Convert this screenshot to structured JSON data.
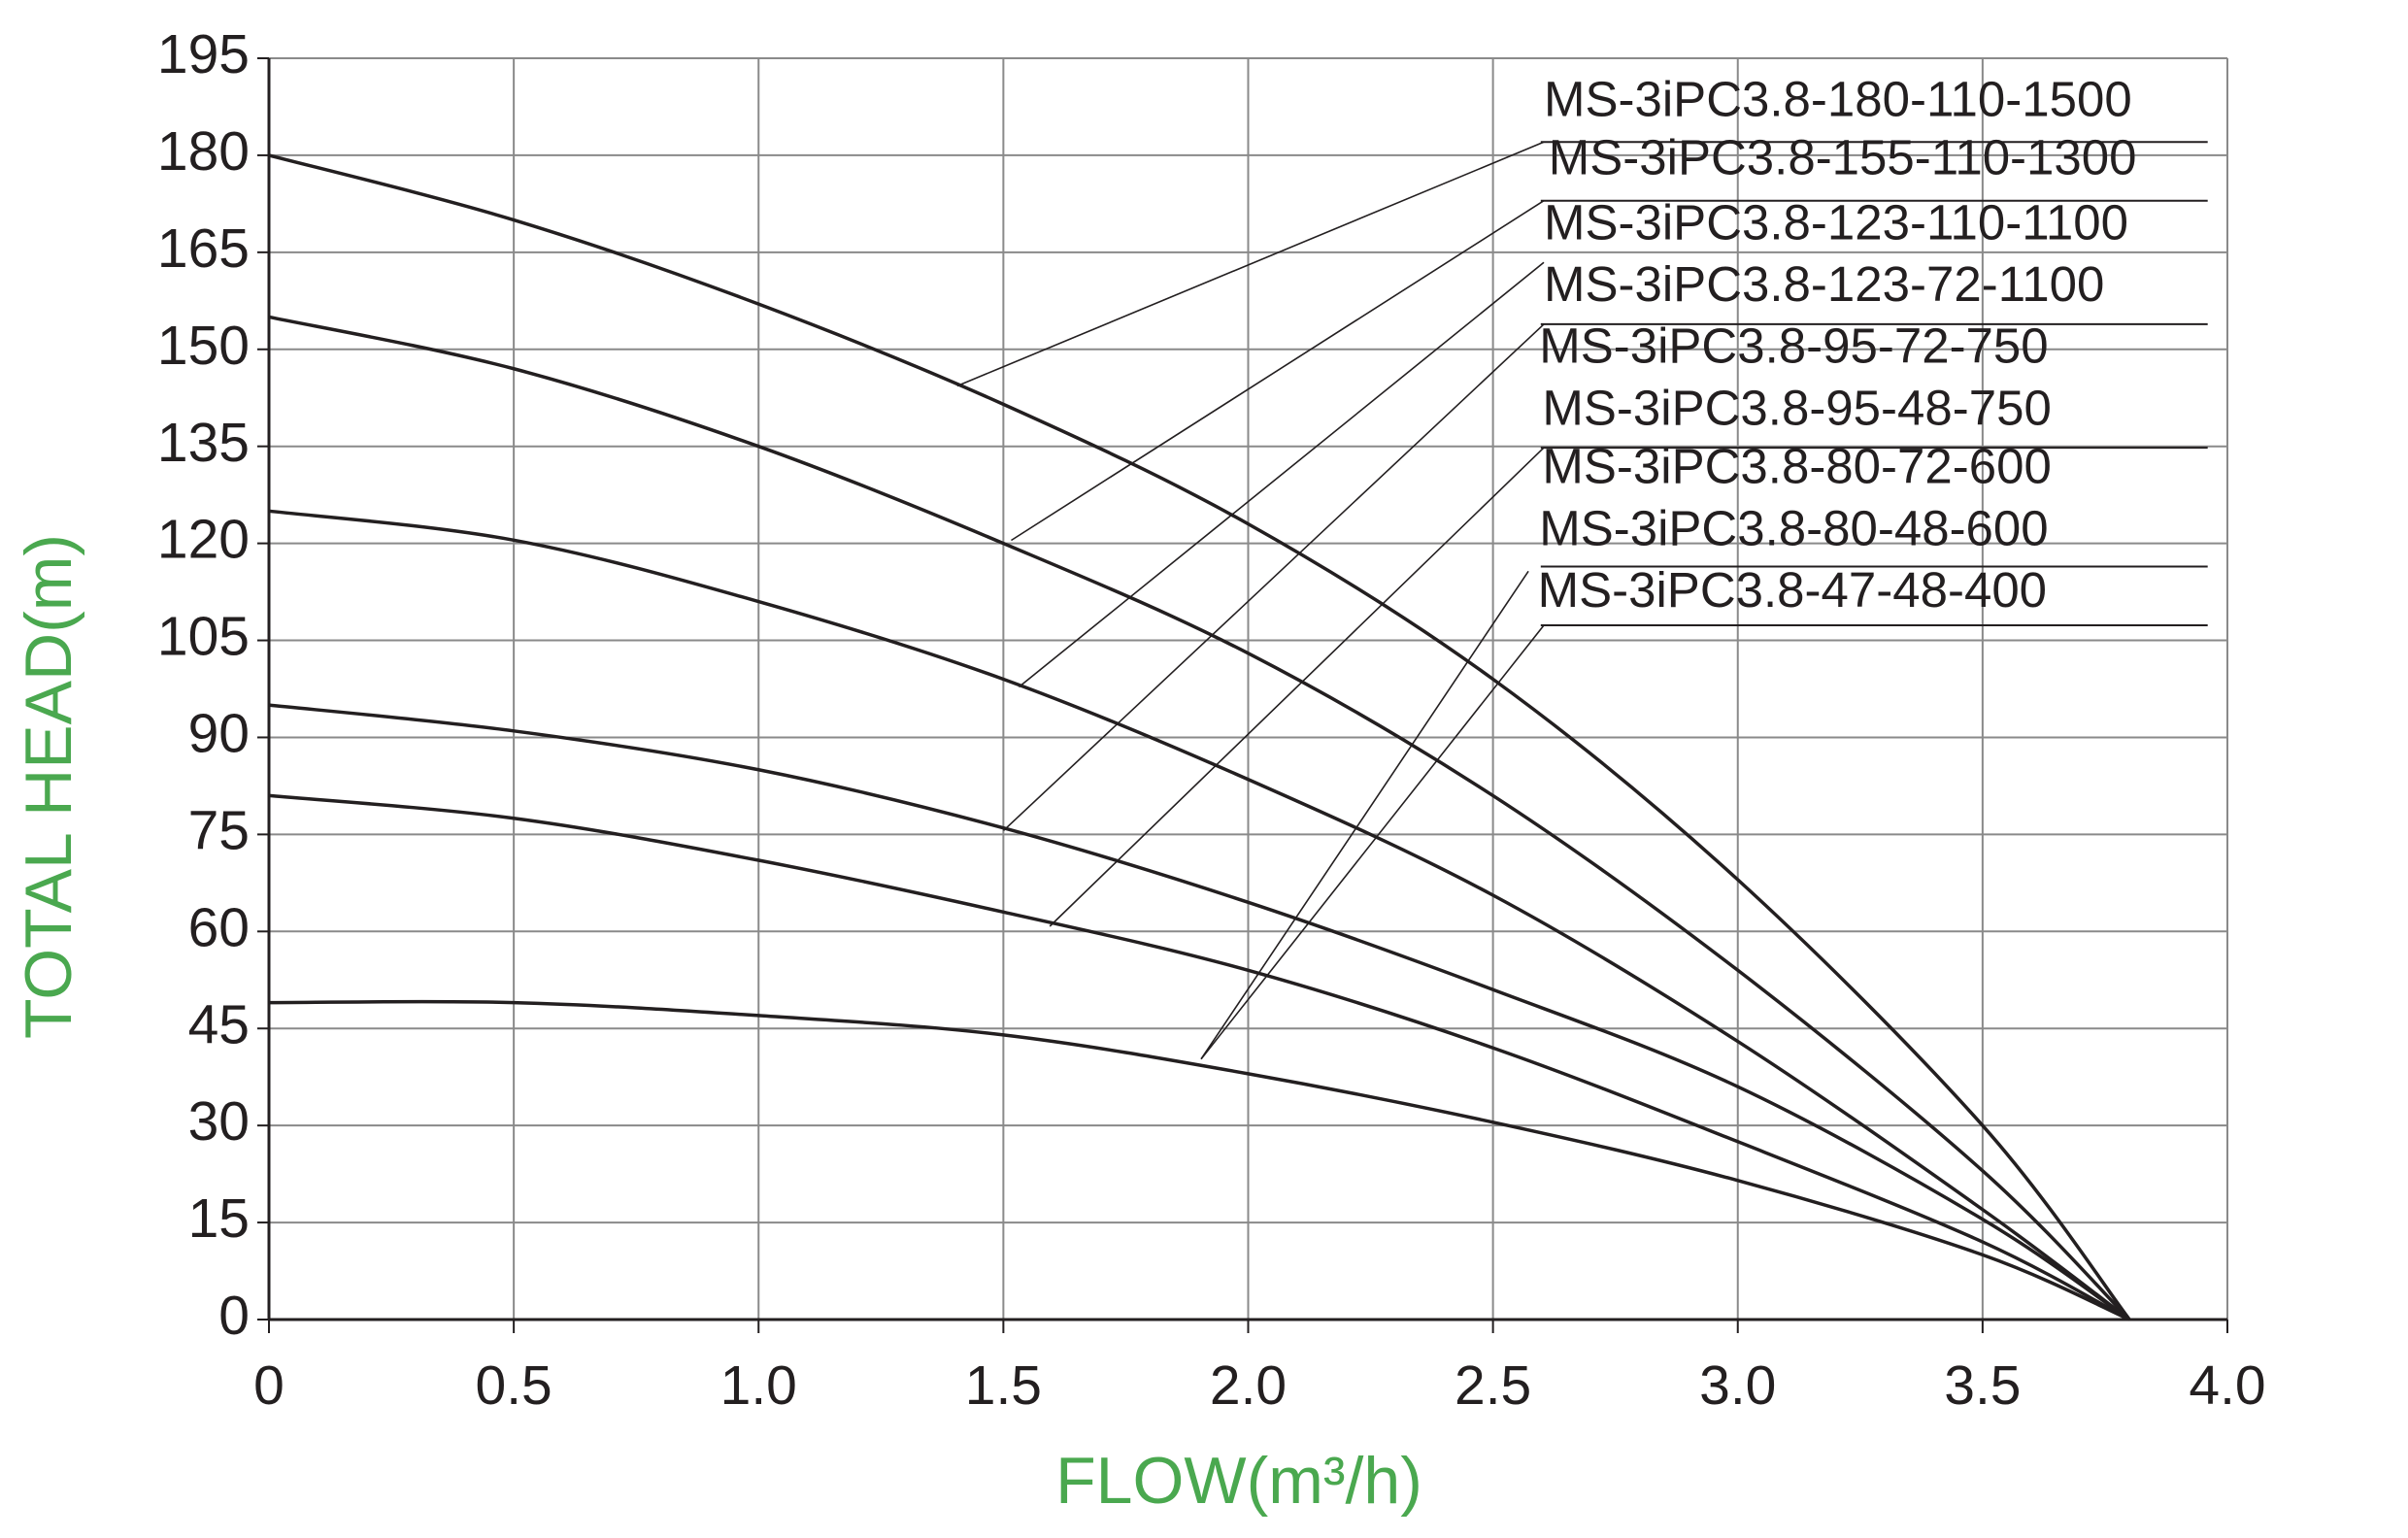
{
  "chart_data": {
    "type": "line",
    "x_label": "FLOW(m³/h)",
    "y_label": "TOTAL HEAD(m)",
    "x": [
      0,
      0.5,
      1,
      1.5,
      2,
      2.5,
      3,
      3.5,
      3.8
    ],
    "series": [
      {
        "color": "#231f20",
        "values": [
          180,
          170,
          157,
          141.5,
          123,
          99,
          68,
          30,
          0
        ]
      },
      {
        "color": "#231f20",
        "values": [
          155,
          147,
          135,
          120,
          103,
          81,
          54,
          23,
          0
        ]
      },
      {
        "color": "#231f20",
        "values": [
          125,
          120.5,
          111,
          99,
          83.5,
          65.6,
          43,
          17,
          0
        ]
      },
      {
        "color": "#231f20",
        "values": [
          95,
          91,
          85,
          76,
          64.5,
          51,
          36,
          15.5,
          0
        ]
      },
      {
        "color": "#231f20",
        "values": [
          81,
          77.5,
          71,
          63,
          54,
          42,
          27.5,
          12,
          0
        ]
      },
      {
        "color": "#231f20",
        "values": [
          49,
          49,
          47,
          44,
          38,
          30.5,
          21.5,
          10,
          0
        ]
      }
    ],
    "annotations": [
      "MS-3iPC3.8-180-110-1500",
      "MS-3iPC3.8-155-110-1300",
      "MS-3iPC3.8-123-110-1100",
      "MS-3iPC3.8-123-72-1100",
      "MS-3iPC3.8-95-72-750",
      "MS-3iPC3.8-95-48-750",
      "MS-3iPC3.8-80-72-600",
      "MS-3iPC3.8-80-48-600",
      "MS-3iPC3.8-47-48-400"
    ],
    "xlim": [
      0,
      4
    ],
    "xticks": [
      0,
      0.5,
      {
        "value": 1,
        "label": "1.0"
      },
      1.5,
      {
        "value": 2,
        "label": "2.0"
      },
      2.5,
      {
        "value": 3,
        "label": "3.0"
      },
      3.5,
      {
        "value": 4,
        "label": "4.0"
      }
    ],
    "ylim": [
      0,
      195
    ],
    "yticks": [
      0,
      15,
      30,
      45,
      60,
      75,
      90,
      105,
      120,
      135,
      150,
      165,
      180,
      195
    ],
    "grid": true
  }
}
